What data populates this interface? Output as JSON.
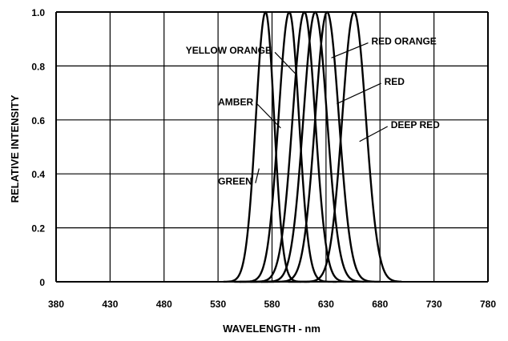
{
  "chart_data": {
    "type": "line",
    "title": "",
    "xlabel": "WAVELENGTH - nm",
    "ylabel": "RELATIVE INTENSITY",
    "xlim": [
      380,
      780
    ],
    "ylim": [
      0,
      1.0
    ],
    "x_ticks": [
      {
        "value": 380,
        "label": "380"
      },
      {
        "value": 430,
        "label": "430"
      },
      {
        "value": 480,
        "label": "480"
      },
      {
        "value": 530,
        "label": "530"
      },
      {
        "value": 580,
        "label": "580"
      },
      {
        "value": 630,
        "label": "630"
      },
      {
        "value": 680,
        "label": "680"
      },
      {
        "value": 730,
        "label": "730"
      },
      {
        "value": 780,
        "label": "780"
      }
    ],
    "y_ticks": [
      {
        "value": 0,
        "label": "0"
      },
      {
        "value": 0.2,
        "label": "0.2"
      },
      {
        "value": 0.4,
        "label": "0.4"
      },
      {
        "value": 0.6,
        "label": "0.6"
      },
      {
        "value": 0.8,
        "label": "0.8"
      },
      {
        "value": 1.0,
        "label": "1.0"
      }
    ],
    "grid": true,
    "line_color": "#000000",
    "series": [
      {
        "name": "GREEN",
        "peak": 574,
        "hw_left": 9,
        "hw_right": 8,
        "x_start": 535,
        "x_end": 615,
        "label_x": 530,
        "label_y": 0.36,
        "arrow_x": 568,
        "arrow_y": 0.42
      },
      {
        "name": "AMBER",
        "peak": 596,
        "hw_left": 10,
        "hw_right": 9,
        "x_start": 545,
        "x_end": 640,
        "label_x": 530,
        "label_y": 0.655,
        "arrow_x": 588,
        "arrow_y": 0.57
      },
      {
        "name": "YELLOW ORANGE",
        "peak": 610,
        "hw_left": 11,
        "hw_right": 10,
        "x_start": 550,
        "x_end": 655,
        "label_x": 500,
        "label_y": 0.845,
        "arrow_x": 602,
        "arrow_y": 0.77
      },
      {
        "name": "RED ORANGE",
        "peak": 620,
        "hw_left": 11,
        "hw_right": 11,
        "x_start": 560,
        "x_end": 665,
        "label_x": 672,
        "label_y": 0.88,
        "arrow_x": 635,
        "arrow_y": 0.83
      },
      {
        "name": "RED",
        "peak": 631,
        "hw_left": 11,
        "hw_right": 11,
        "x_start": 570,
        "x_end": 680,
        "label_x": 684,
        "label_y": 0.73,
        "arrow_x": 640,
        "arrow_y": 0.66
      },
      {
        "name": "DEEP RED",
        "peak": 656,
        "hw_left": 11,
        "hw_right": 11,
        "x_start": 595,
        "x_end": 700,
        "label_x": 690,
        "label_y": 0.57,
        "arrow_x": 661,
        "arrow_y": 0.52
      }
    ]
  }
}
